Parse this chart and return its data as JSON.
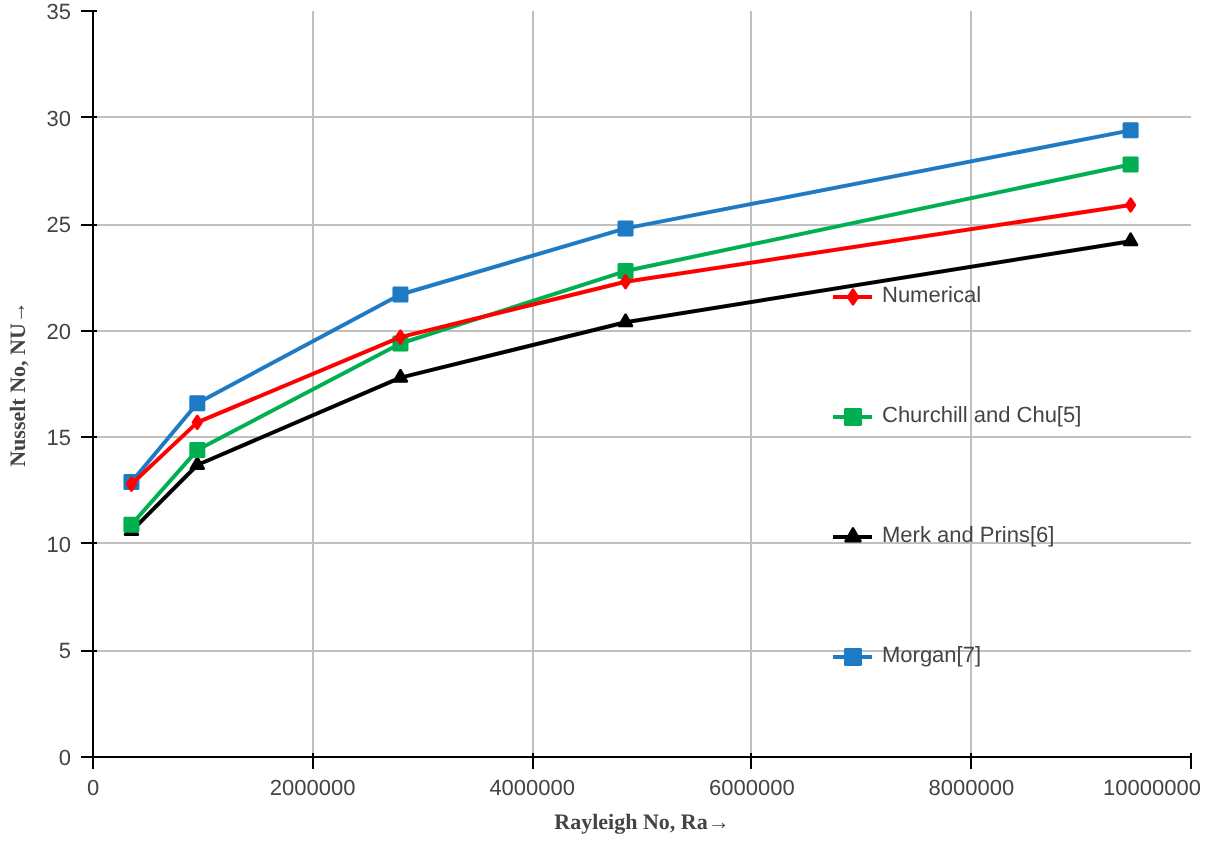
{
  "chart_data": {
    "type": "line",
    "xlabel": "Rayleigh No, Ra→",
    "ylabel": "Nusselt No, NU→",
    "x": [
      350000,
      950000,
      2800000,
      4850000,
      9450000
    ],
    "xlim": [
      0,
      10000000
    ],
    "xticks": [
      0,
      2000000,
      4000000,
      6000000,
      8000000,
      10000000
    ],
    "ylim": [
      0,
      35
    ],
    "yticks": [
      0,
      5,
      10,
      15,
      20,
      25,
      30,
      35
    ],
    "grid": true,
    "legend": "right",
    "line_style": "solid",
    "series": [
      {
        "name": "Numerical",
        "color": "#ff0000",
        "marker": "diamond",
        "values": [
          12.8,
          15.7,
          19.7,
          22.3,
          25.9
        ]
      },
      {
        "name": "Churchill and Chu[5]",
        "color": "#00b050",
        "marker": "square",
        "values": [
          10.9,
          14.4,
          19.4,
          22.8,
          27.8
        ]
      },
      {
        "name": "Merk and Prins[6]",
        "color": "#000000",
        "marker": "triangle",
        "values": [
          10.6,
          13.7,
          17.8,
          20.4,
          24.2
        ]
      },
      {
        "name": "Morgan[7]",
        "color": "#1f7ac4",
        "marker": "square",
        "values": [
          12.9,
          16.6,
          21.7,
          24.8,
          29.4
        ]
      }
    ]
  }
}
